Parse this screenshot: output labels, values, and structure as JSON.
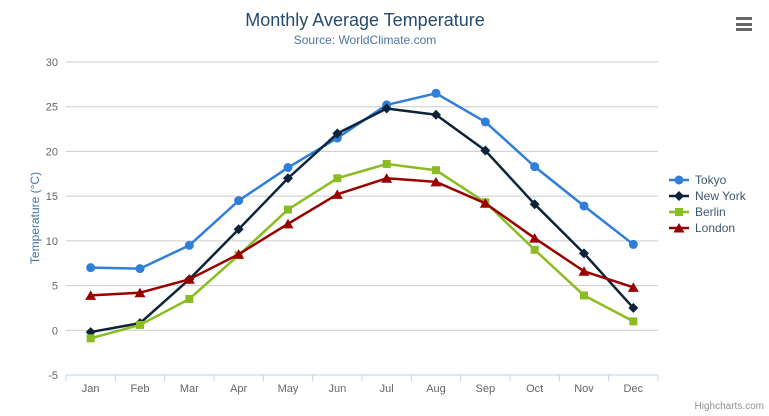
{
  "chart_data": {
    "type": "line",
    "title": "Monthly Average Temperature",
    "subtitle": "Source: WorldClimate.com",
    "xlabel": "",
    "ylabel": "Temperature (°C)",
    "ylim": [
      -5,
      30
    ],
    "yticks": [
      30,
      25,
      20,
      15,
      10,
      5,
      0,
      -5
    ],
    "grid": true,
    "legend_position": "right",
    "categories": [
      "Jan",
      "Feb",
      "Mar",
      "Apr",
      "May",
      "Jun",
      "Jul",
      "Aug",
      "Sep",
      "Oct",
      "Nov",
      "Dec"
    ],
    "series": [
      {
        "name": "Tokyo",
        "color": "#2f7ed8",
        "marker": "circle",
        "values": [
          7.0,
          6.9,
          9.5,
          14.5,
          18.2,
          21.5,
          25.2,
          26.5,
          23.3,
          18.3,
          13.9,
          9.6
        ]
      },
      {
        "name": "New York",
        "color": "#0d233a",
        "marker": "diamond",
        "values": [
          -0.2,
          0.8,
          5.7,
          11.3,
          17.0,
          22.0,
          24.8,
          24.1,
          20.1,
          14.1,
          8.6,
          2.5
        ]
      },
      {
        "name": "Berlin",
        "color": "#8bbc21",
        "marker": "square",
        "values": [
          -0.9,
          0.6,
          3.5,
          8.4,
          13.5,
          17.0,
          18.6,
          17.9,
          14.3,
          9.0,
          3.9,
          1.0
        ]
      },
      {
        "name": "London",
        "color": "#990000",
        "marker": "triangle",
        "values": [
          3.9,
          4.2,
          5.7,
          8.5,
          11.9,
          15.2,
          17.0,
          16.6,
          14.2,
          10.3,
          6.6,
          4.8
        ]
      }
    ]
  },
  "credits": {
    "label": "Highcharts.com"
  },
  "menu": {
    "icon": "hamburger-icon"
  },
  "colors": {
    "title": "#274b6d",
    "subtitle": "#4d759e",
    "axis_labels": "#666666",
    "y_axis_title": "#4572a7",
    "gridline": "#cccccc",
    "axis_line": "#c0d0e0",
    "legend_text": "#3e576f",
    "credits_text": "#909090",
    "menu_icon": "#666666"
  }
}
